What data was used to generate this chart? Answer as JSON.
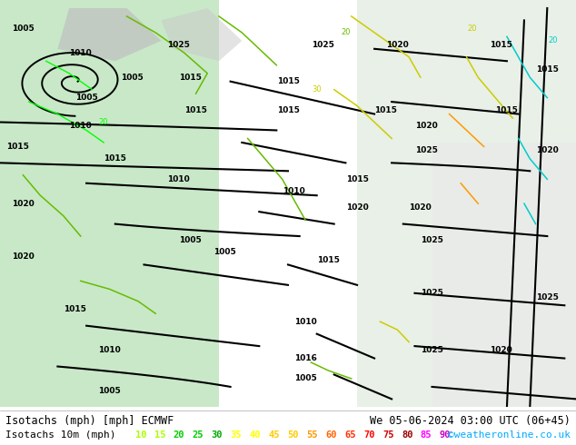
{
  "title_left": "Isotachs (mph) [mph] ECMWF",
  "title_right": "We 05-06-2024 03:00 UTC (06+45)",
  "legend_label": "Isotachs 10m (mph)",
  "legend_values": [
    10,
    15,
    20,
    25,
    30,
    35,
    40,
    45,
    50,
    55,
    60,
    65,
    70,
    75,
    80,
    85,
    90
  ],
  "legend_colors": [
    "#aaff00",
    "#aaff00",
    "#00cc00",
    "#00cc00",
    "#00aa00",
    "#ffff00",
    "#ffff00",
    "#ffcc00",
    "#ffcc00",
    "#ff9900",
    "#ff6600",
    "#ff3300",
    "#ff0000",
    "#cc0000",
    "#990000",
    "#ff00ff",
    "#cc00cc"
  ],
  "copyright": "©weatheronline.co.uk",
  "copyright_color": "#00aaff",
  "bg_color": "#d8ecd8",
  "bottom_bar_color": "#ffffff",
  "label_color": "#000000",
  "fig_width": 6.34,
  "fig_height": 4.9,
  "dpi": 100
}
